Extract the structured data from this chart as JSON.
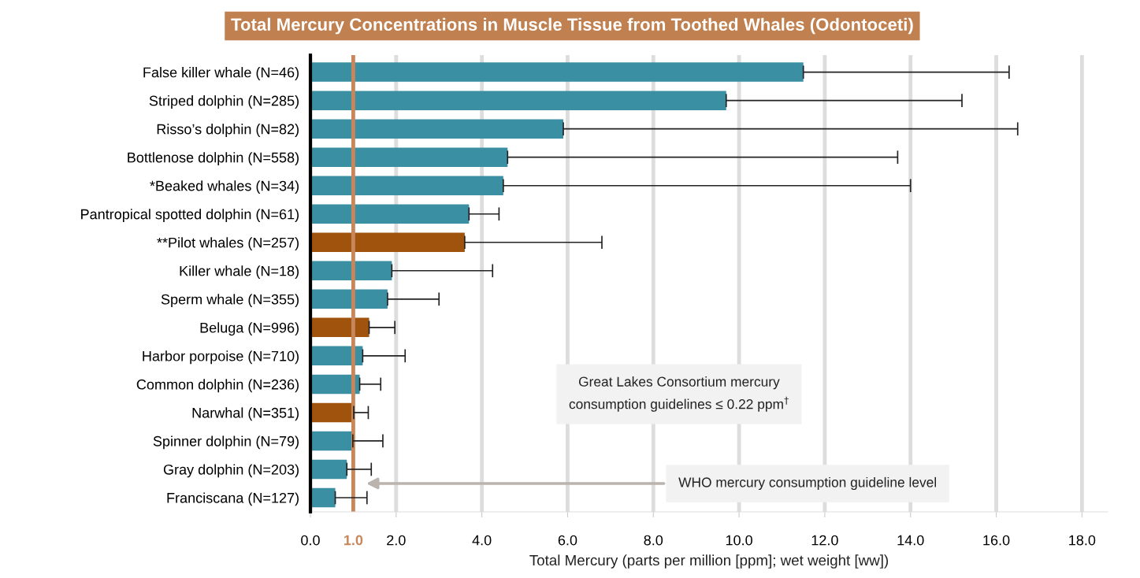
{
  "chart_data": {
    "type": "bar",
    "orientation": "horizontal",
    "title": "Total Mercury Concentrations in Muscle Tissue from Toothed Whales (Odontoceti)",
    "xlabel": "Total Mercury (parts per million [ppm]; wet weight [ww])",
    "categories": [
      "False killer whale (N=46)",
      "Striped dolphin (N=285)",
      "Risso’s dolphin (N=82)",
      "Bottlenose dolphin (N=558)",
      "*Beaked whales (N=34)",
      "Pantropical spotted dolphin (N=61)",
      "**Pilot whales (N=257)",
      "Killer whale (N=18)",
      "Sperm whale (N=355)",
      "Beluga (N=996)",
      "Harbor porpoise (N=710)",
      "Common dolphin (N=236)",
      "Narwhal (N=351)",
      "Spinner dolphin (N=79)",
      "Gray dolphin (N=203)",
      "Franciscana (N=127)"
    ],
    "values": [
      11.5,
      9.7,
      5.9,
      4.6,
      4.5,
      3.7,
      3.6,
      1.9,
      1.8,
      1.37,
      1.22,
      1.15,
      1.01,
      0.99,
      0.85,
      0.58
    ],
    "errors": [
      [
        11.5,
        16.3
      ],
      [
        9.7,
        15.2
      ],
      [
        5.9,
        16.5
      ],
      [
        4.6,
        13.7
      ],
      [
        4.5,
        14.0
      ],
      [
        3.7,
        4.4
      ],
      [
        3.6,
        6.8
      ],
      [
        1.9,
        4.25
      ],
      [
        1.8,
        3.0
      ],
      [
        1.37,
        1.97
      ],
      [
        1.22,
        2.21
      ],
      [
        1.15,
        1.64
      ],
      [
        1.01,
        1.35
      ],
      [
        0.99,
        1.69
      ],
      [
        0.85,
        1.42
      ],
      [
        0.58,
        1.32
      ]
    ],
    "colors": [
      "#3a8fa3",
      "#3a8fa3",
      "#3a8fa3",
      "#3a8fa3",
      "#3a8fa3",
      "#3a8fa3",
      "#a0530c",
      "#3a8fa3",
      "#3a8fa3",
      "#a0530c",
      "#3a8fa3",
      "#3a8fa3",
      "#a0530c",
      "#3a8fa3",
      "#3a8fa3",
      "#3a8fa3"
    ],
    "xlim": [
      0,
      18.6
    ],
    "xticks": [
      {
        "value": 0,
        "label": "0.0"
      },
      {
        "value": 2,
        "label": "2.0"
      },
      {
        "value": 4,
        "label": "4.0"
      },
      {
        "value": 6,
        "label": "6.0"
      },
      {
        "value": 8,
        "label": "8.0"
      },
      {
        "value": 10,
        "label": "10.0"
      },
      {
        "value": 12,
        "label": "12.0"
      },
      {
        "value": 14,
        "label": "14.0"
      },
      {
        "value": 16,
        "label": "16.0"
      },
      {
        "value": 18,
        "label": "18.0"
      }
    ],
    "grid": "x",
    "ref_lines": [
      {
        "axis": "x",
        "value": 1.0,
        "label": "1.0",
        "color": "#c8875a"
      }
    ],
    "annotations": [
      "Great Lakes Consortium mercury\nconsumption guidelines ≤ 0.22 ppm$^{†}$",
      "WHO mercury consumption guideline level"
    ]
  }
}
